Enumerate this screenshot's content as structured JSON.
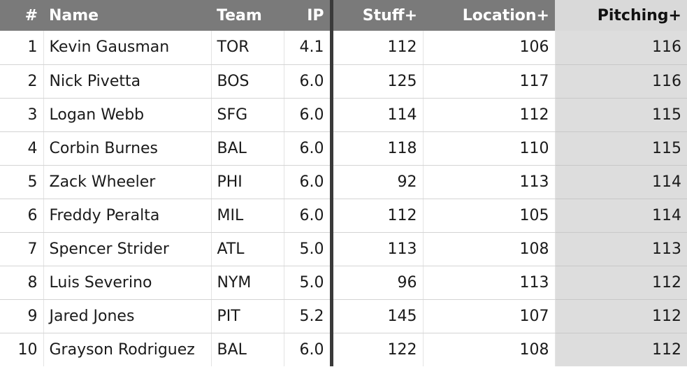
{
  "table": {
    "headers": {
      "num": "#",
      "name": "Name",
      "team": "Team",
      "ip": "IP",
      "stuff": "Stuff+",
      "location": "Location+",
      "pitching": "Pitching+"
    },
    "rows": [
      {
        "num": "1",
        "name": "Kevin Gausman",
        "team": "TOR",
        "ip": "4.1",
        "stuff": "112",
        "location": "106",
        "pitching": "116"
      },
      {
        "num": "2",
        "name": "Nick Pivetta",
        "team": "BOS",
        "ip": "6.0",
        "stuff": "125",
        "location": "117",
        "pitching": "116"
      },
      {
        "num": "3",
        "name": "Logan Webb",
        "team": "SFG",
        "ip": "6.0",
        "stuff": "114",
        "location": "112",
        "pitching": "115"
      },
      {
        "num": "4",
        "name": "Corbin Burnes",
        "team": "BAL",
        "ip": "6.0",
        "stuff": "118",
        "location": "110",
        "pitching": "115"
      },
      {
        "num": "5",
        "name": "Zack Wheeler",
        "team": "PHI",
        "ip": "6.0",
        "stuff": "92",
        "location": "113",
        "pitching": "114"
      },
      {
        "num": "6",
        "name": "Freddy Peralta",
        "team": "MIL",
        "ip": "6.0",
        "stuff": "112",
        "location": "105",
        "pitching": "114"
      },
      {
        "num": "7",
        "name": "Spencer Strider",
        "team": "ATL",
        "ip": "5.0",
        "stuff": "113",
        "location": "108",
        "pitching": "113"
      },
      {
        "num": "8",
        "name": "Luis Severino",
        "team": "NYM",
        "ip": "5.0",
        "stuff": "96",
        "location": "113",
        "pitching": "112"
      },
      {
        "num": "9",
        "name": "Jared Jones",
        "team": "PIT",
        "ip": "5.2",
        "stuff": "145",
        "location": "107",
        "pitching": "112"
      },
      {
        "num": "10",
        "name": "Grayson Rodriguez",
        "team": "BAL",
        "ip": "6.0",
        "stuff": "122",
        "location": "108",
        "pitching": "112"
      }
    ]
  }
}
